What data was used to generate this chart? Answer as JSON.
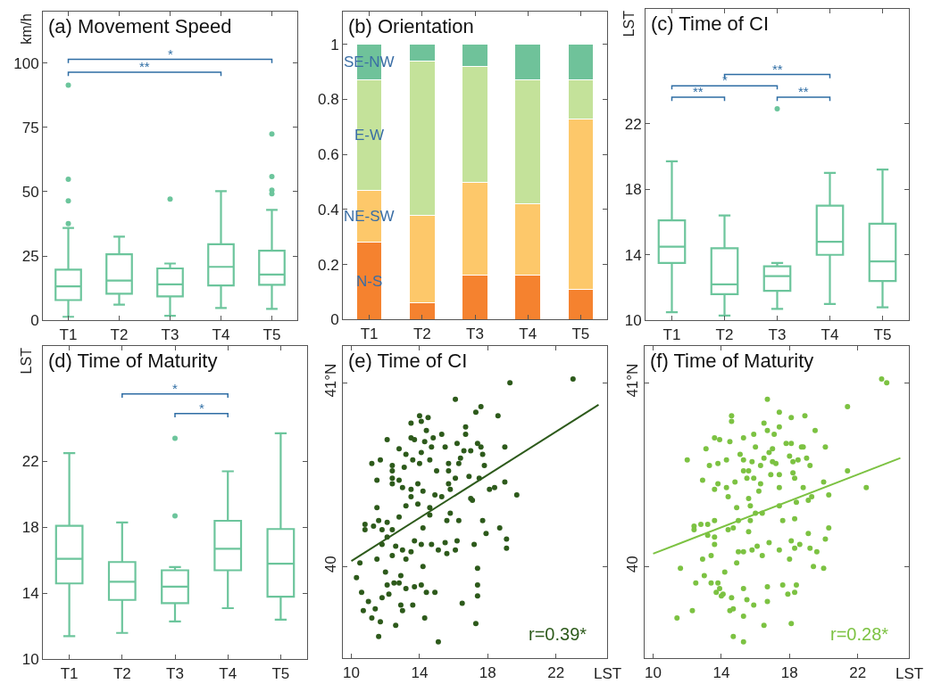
{
  "chart_data": [
    {
      "type": "box",
      "title": "(a) Movement Speed",
      "ylabel": "km/h",
      "categories": [
        "T1",
        "T2",
        "T3",
        "T4",
        "T5"
      ],
      "ylim": [
        0,
        120
      ],
      "yticks": [
        0,
        25,
        50,
        75,
        100
      ],
      "annotations": [
        "*",
        "**"
      ],
      "series": [
        {
          "color": "#6cc59c",
          "boxes": [
            {
              "low": 1.4,
              "q1": 7.9,
              "median": 13.2,
              "q3": 19.7,
              "high": 35.9,
              "outliers": [
                37.6,
                46.4,
                54.8,
                91.4
              ]
            },
            {
              "low": 6.1,
              "q1": 10.4,
              "median": 15.5,
              "q3": 25.7,
              "high": 32.5
            },
            {
              "low": 1.8,
              "q1": 9.3,
              "median": 14.0,
              "q3": 20.2,
              "high": 22.1,
              "outliers": [
                47.1
              ]
            },
            {
              "low": 4.8,
              "q1": 13.6,
              "median": 20.8,
              "q3": 29.6,
              "high": 50.2
            },
            {
              "low": 4.5,
              "q1": 13.8,
              "median": 17.8,
              "q3": 27.1,
              "high": 42.9,
              "outliers": [
                49.2,
                50.6,
                55.9,
                72.4
              ]
            }
          ]
        }
      ]
    },
    {
      "type": "bar",
      "title": "(b) Orientation",
      "stacked": true,
      "categories": [
        "T1",
        "T2",
        "T3",
        "T4",
        "T5"
      ],
      "ylim": [
        0,
        1.12
      ],
      "yticks": [
        0,
        0.2,
        0.4,
        0.6,
        0.8,
        1
      ],
      "series": [
        {
          "name": "N-S",
          "color": "#f5822f",
          "values": [
            0.28,
            0.06,
            0.16,
            0.16,
            0.11
          ]
        },
        {
          "name": "NE-SW",
          "color": "#fdc86a",
          "values": [
            0.19,
            0.32,
            0.34,
            0.26,
            0.62
          ]
        },
        {
          "name": "E-W",
          "color": "#c4e29a",
          "values": [
            0.4,
            0.56,
            0.42,
            0.45,
            0.14
          ]
        },
        {
          "name": "SE-NW",
          "color": "#6fc29a",
          "values": [
            0.13,
            0.06,
            0.08,
            0.13,
            0.13
          ]
        }
      ]
    },
    {
      "type": "box",
      "title": "(c) Time of CI",
      "ylabel": "LST",
      "categories": [
        "T1",
        "T2",
        "T3",
        "T4",
        "T5"
      ],
      "ylim": [
        10,
        29
      ],
      "yticks": [
        10,
        14,
        18,
        22
      ],
      "annotations": [
        "**",
        "*",
        "**",
        "**"
      ],
      "series": [
        {
          "color": "#6cc59c",
          "boxes": [
            {
              "low": 10.5,
              "q1": 13.5,
              "median": 14.5,
              "q3": 16.1,
              "high": 19.7
            },
            {
              "low": 10.3,
              "q1": 11.6,
              "median": 12.2,
              "q3": 14.4,
              "high": 16.4
            },
            {
              "low": 10.7,
              "q1": 11.8,
              "median": 12.7,
              "q3": 13.3,
              "high": 13.5,
              "outliers": [
                22.9
              ]
            },
            {
              "low": 11.0,
              "q1": 14.0,
              "median": 14.8,
              "q3": 17.0,
              "high": 19.0
            },
            {
              "low": 10.8,
              "q1": 12.4,
              "median": 13.6,
              "q3": 15.9,
              "high": 19.2
            }
          ]
        }
      ]
    },
    {
      "type": "box",
      "title": "(d) Time of Maturity",
      "ylabel": "LST",
      "categories": [
        "T1",
        "T2",
        "T3",
        "T4",
        "T5"
      ],
      "ylim": [
        10,
        29
      ],
      "yticks": [
        10,
        14,
        18,
        22
      ],
      "annotations": [
        "*",
        "*"
      ],
      "series": [
        {
          "color": "#6cc59c",
          "boxes": [
            {
              "low": 11.4,
              "q1": 14.6,
              "median": 16.1,
              "q3": 18.1,
              "high": 22.5
            },
            {
              "low": 11.6,
              "q1": 13.6,
              "median": 14.7,
              "q3": 15.9,
              "high": 18.3
            },
            {
              "low": 12.3,
              "q1": 13.4,
              "median": 14.4,
              "q3": 15.4,
              "high": 15.6,
              "outliers": [
                18.7,
                23.4
              ]
            },
            {
              "low": 13.1,
              "q1": 15.4,
              "median": 16.7,
              "q3": 18.4,
              "high": 21.4
            },
            {
              "low": 12.4,
              "q1": 13.8,
              "median": 15.8,
              "q3": 17.9,
              "high": 23.7
            }
          ]
        }
      ]
    },
    {
      "type": "scatter",
      "title": "(e) Time of CI",
      "xlabel": "LST",
      "xlim": [
        9.5,
        25
      ],
      "xticks": [
        10,
        14,
        18,
        22
      ],
      "ylim": [
        39.5,
        41.2
      ],
      "yticks": [
        40,
        {
          "value": 41,
          "label": "41°N"
        }
      ],
      "annotations": [
        "r=0.39*"
      ],
      "series": [
        {
          "color": "#2d5a1b",
          "marker": "circle",
          "x": [
            19.3,
            23.0,
            16.1,
            17.6,
            17.3,
            18.6,
            14.0,
            14.5,
            14.1,
            13.5,
            14.4,
            16.7,
            16.7,
            12.1,
            13.5,
            13.7,
            14.3,
            14.8,
            15.3,
            17.4,
            17.6,
            16.2,
            15.5,
            12.8,
            14.7,
            14.1,
            13.2,
            13.6,
            16.6,
            17.0,
            16.4,
            17.7,
            11.2,
            11.7,
            12.4,
            14.0,
            14.6,
            15.7,
            16.3,
            17.8,
            19.0,
            13.1,
            12.4,
            15.0,
            15.7,
            16.1,
            16.9,
            17.5,
            11.5,
            12.4,
            12.4,
            12.8,
            13.9,
            13.0,
            13.5,
            14.2,
            14.9,
            15.3,
            15.7,
            15.8,
            18.4,
            18.1,
            19.0,
            19.7,
            17.0,
            17.1,
            13.5,
            13.2,
            13.9,
            14.6,
            15.8,
            11.5,
            10.8,
            10.8,
            11.3,
            11.6,
            11.8,
            12.1,
            12.8,
            12.4,
            12.1,
            11.8,
            12.4,
            12.6,
            13.0,
            13.2,
            13.5,
            13.7,
            14.1,
            14.7,
            15.1,
            15.5,
            15.6,
            16.1,
            16.2,
            16.3,
            15.6,
            14.6,
            14.2,
            17.2,
            17.7,
            17.9,
            18.7,
            19.1,
            19.1,
            10.5,
            10.3,
            10.6,
            10.7,
            11.0,
            11.2,
            11.4,
            11.7,
            11.6,
            12.0,
            12.1,
            11.8,
            12.2,
            12.5,
            12.8,
            12.9,
            13.2,
            12.9,
            13.0,
            13.6,
            13.7,
            14.1,
            14.2,
            14.4,
            14.3,
            14.9,
            15.1,
            12.6,
            16.5,
            17.4,
            17.4,
            17.4,
            17.3,
            11.5
          ],
          "values": [
            41.0,
            41.02,
            40.91,
            40.87,
            40.84,
            40.82,
            40.82,
            40.81,
            40.79,
            40.78,
            40.74,
            40.76,
            40.72,
            40.69,
            40.7,
            40.69,
            40.68,
            40.7,
            40.72,
            40.67,
            40.65,
            40.67,
            40.65,
            40.64,
            40.65,
            40.62,
            40.61,
            40.58,
            40.63,
            40.63,
            40.59,
            40.61,
            40.56,
            40.58,
            40.55,
            40.56,
            40.58,
            40.56,
            40.56,
            40.55,
            40.65,
            40.54,
            40.52,
            40.52,
            40.52,
            40.48,
            40.49,
            40.48,
            40.47,
            40.48,
            40.45,
            40.47,
            40.45,
            40.43,
            40.42,
            40.41,
            40.39,
            40.38,
            40.45,
            40.42,
            40.43,
            40.42,
            40.46,
            40.39,
            40.37,
            40.36,
            40.38,
            40.33,
            40.34,
            40.32,
            40.29,
            40.32,
            40.23,
            40.2,
            40.22,
            40.25,
            40.2,
            40.24,
            40.27,
            40.2,
            40.16,
            40.12,
            40.06,
            40.11,
            40.09,
            40.04,
            40.08,
            40.14,
            40.12,
            40.12,
            40.09,
            40.13,
            40.07,
            40.09,
            40.14,
            40.25,
            40.25,
            40.28,
            40.21,
            40.12,
            40.25,
            40.18,
            40.21,
            40.15,
            40.1,
            40.02,
            39.94,
            39.86,
            39.76,
            39.81,
            39.72,
            39.77,
            39.7,
            39.62,
            39.97,
            39.9,
            39.83,
            39.85,
            39.91,
            39.91,
            39.95,
            39.88,
            39.79,
            39.76,
            39.79,
            39.89,
            39.9,
            40.0,
            39.86,
            39.72,
            39.86,
            39.59,
            39.68,
            39.8,
            39.99,
            39.9,
            39.84,
            39.69,
            40.04
          ]
        },
        {
          "type": "line",
          "color": "#2d5a1b",
          "x": [
            10,
            24.5
          ],
          "values": [
            40.03,
            40.88
          ]
        }
      ]
    },
    {
      "type": "scatter",
      "title": "(f) Time of Maturity",
      "xlabel": "LST",
      "xlim": [
        9.5,
        25
      ],
      "xticks": [
        10,
        14,
        18,
        22
      ],
      "ylim": [
        39.5,
        41.2
      ],
      "yticks": [
        40,
        {
          "value": 41,
          "label": "41°N"
        }
      ],
      "annotations": [
        "r=0.28*"
      ],
      "series": [
        {
          "color": "#7cc242",
          "marker": "circle",
          "x": [
            23.4,
            23.7,
            16.7,
            21.4,
            17.4,
            14.6,
            14.6,
            18.9,
            18.1,
            16.5,
            17.4,
            16.7,
            19.5,
            13.6,
            13.9,
            14.5,
            15.3,
            15.9,
            16.0,
            17.1,
            17.8,
            18.1,
            18.8,
            20.1,
            13.1,
            12.0,
            13.3,
            13.8,
            14.3,
            15.1,
            15.3,
            15.8,
            16.5,
            16.8,
            17.0,
            17.0,
            17.2,
            18.0,
            18.2,
            18.5,
            18.7,
            19.0,
            19.2,
            18.2,
            17.4,
            16.3,
            15.6,
            15.3,
            15.5,
            15.9,
            16.3,
            16.9,
            17.4,
            18.3,
            18.8,
            19.1,
            20.0,
            20.3,
            21.4,
            22.5,
            12.9,
            13.6,
            13.8,
            14.3,
            14.8,
            14.4,
            14.9,
            15.6,
            15.7,
            16.2,
            15.0,
            15.7,
            16.0,
            16.4,
            17.4,
            17.6,
            18.3,
            18.4,
            19.3,
            12.4,
            12.4,
            12.8,
            13.2,
            13.6,
            13.2,
            13.6,
            13.6,
            13.4,
            12.9,
            14.4,
            14.7,
            15.6,
            15.0,
            15.3,
            14.9,
            15.8,
            16.1,
            16.4,
            16.8,
            17.4,
            18.1,
            18.3,
            18.6,
            19.1,
            19.2,
            19.6,
            19.4,
            20.0,
            20.1,
            20.3,
            18.0,
            11.6,
            12.3,
            11.4,
            12.5,
            13.0,
            13.4,
            13.9,
            13.8,
            13.7,
            14.1,
            14.2,
            14.0,
            14.6,
            14.7,
            14.5,
            14.7,
            15.3,
            15.3,
            15.3,
            15.5,
            15.9,
            16.7,
            16.5,
            16.7,
            17.6,
            17.9,
            18.4,
            18.3,
            18.1
          ],
          "values": [
            41.02,
            41.0,
            40.91,
            40.87,
            40.84,
            40.82,
            40.79,
            40.82,
            40.81,
            40.78,
            40.76,
            40.74,
            40.74,
            40.7,
            40.69,
            40.68,
            40.7,
            40.72,
            40.65,
            40.72,
            40.67,
            40.67,
            40.65,
            40.65,
            40.64,
            40.58,
            40.55,
            40.56,
            40.58,
            40.61,
            40.58,
            40.57,
            40.59,
            40.62,
            40.64,
            40.57,
            40.56,
            40.6,
            40.57,
            40.58,
            40.65,
            40.59,
            40.55,
            40.51,
            40.5,
            40.55,
            40.52,
            40.52,
            40.48,
            40.48,
            40.45,
            40.5,
            40.43,
            40.48,
            40.43,
            40.36,
            40.46,
            40.39,
            40.52,
            40.43,
            40.47,
            40.42,
            40.45,
            40.43,
            40.46,
            40.38,
            40.32,
            40.37,
            40.33,
            40.41,
            40.25,
            40.25,
            40.29,
            40.29,
            40.33,
            40.25,
            40.26,
            40.35,
            40.38,
            40.22,
            40.2,
            40.23,
            40.23,
            40.25,
            40.17,
            40.16,
            40.12,
            40.06,
            40.04,
            40.2,
            40.21,
            40.19,
            40.08,
            40.08,
            40.02,
            40.09,
            40.11,
            40.06,
            40.13,
            40.09,
            40.14,
            40.1,
            40.12,
            40.18,
            40.1,
            40.08,
            40.0,
            39.99,
            40.15,
            40.21,
            40.04,
            39.99,
            39.76,
            39.72,
            39.91,
            39.95,
            39.91,
            39.88,
            39.91,
            39.86,
            39.85,
            39.97,
            39.84,
            39.83,
            39.77,
            39.76,
            39.62,
            39.88,
            39.73,
            39.59,
            39.82,
            39.79,
            39.89,
            39.68,
            39.81,
            39.9,
            39.85,
            39.9,
            39.86,
            39.69
          ]
        },
        {
          "type": "line",
          "color": "#7cc242",
          "x": [
            10,
            24.5
          ],
          "values": [
            40.07,
            40.59
          ]
        }
      ]
    }
  ]
}
